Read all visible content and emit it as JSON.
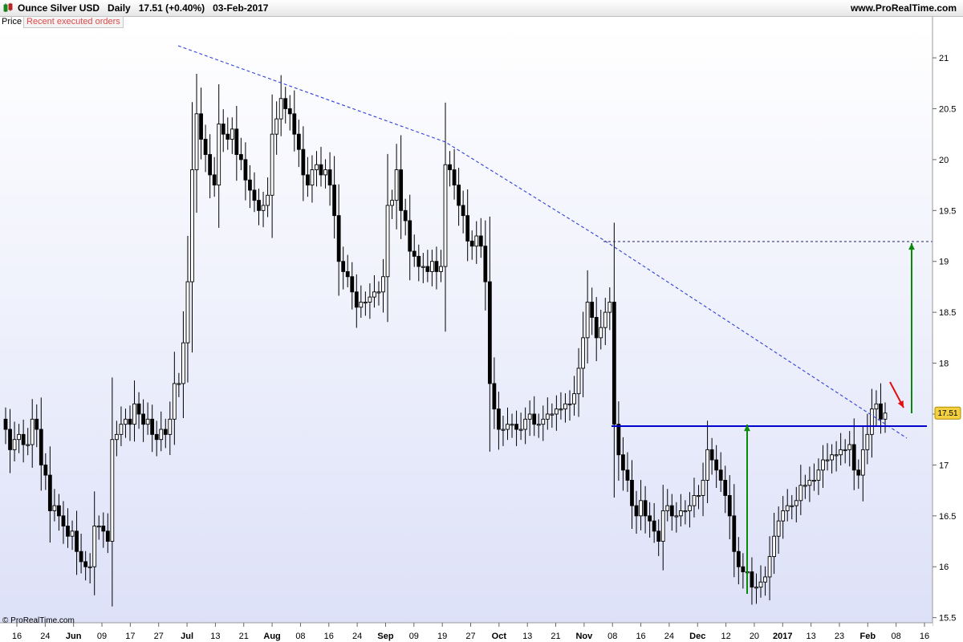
{
  "header": {
    "title": "Ounce Silver USD   Daily   17.51 (+0.40%)   03-Feb-2017",
    "site": "www.ProRealTime.com"
  },
  "panel": {
    "price_label": "Price",
    "orders_label": "Recent executed orders"
  },
  "footer": {
    "copyright": "© ProRealTime.com"
  },
  "colors": {
    "background_top": "#ffffff",
    "background_bottom": "#dde1f8",
    "trendline": "#3040d8",
    "support": "#0000cc",
    "arrow_up": "#0a8a0a",
    "arrow_down": "#e01010",
    "price_tag": "#f2d040",
    "candle_up": "#ffffff",
    "candle_down": "#000000"
  },
  "chart_data": {
    "type": "candlestick",
    "instrument": "Ounce Silver USD",
    "timeframe": "Daily",
    "last_price": 17.51,
    "change_pct": "+0.40%",
    "ylim": [
      15.45,
      21.3
    ],
    "yticks": [
      "15.5",
      "16",
      "16.5",
      "17",
      "17.5",
      "18",
      "18.5",
      "19",
      "19.5",
      "20",
      "20.5",
      "21"
    ],
    "xticks": [
      "16",
      "24",
      "Jun",
      "09",
      "17",
      "27",
      "Jul",
      "13",
      "21",
      "Aug",
      "08",
      "16",
      "24",
      "Sep",
      "09",
      "19",
      "27",
      "Oct",
      "13",
      "21",
      "Nov",
      "08",
      "16",
      "24",
      "Dec",
      "12",
      "20",
      "2017",
      "13",
      "23",
      "Feb",
      "08",
      "16"
    ],
    "closes": [
      17.35,
      17.15,
      17.25,
      17.3,
      17.2,
      17.2,
      17.45,
      17.35,
      17.0,
      16.9,
      16.55,
      16.6,
      16.5,
      16.4,
      16.3,
      16.35,
      16.15,
      16.05,
      16.0,
      16.0,
      16.4,
      16.4,
      16.35,
      16.25,
      17.25,
      17.3,
      17.4,
      17.45,
      17.4,
      17.6,
      17.5,
      17.4,
      17.45,
      17.3,
      17.25,
      17.35,
      17.3,
      17.45,
      17.8,
      17.8,
      18.2,
      18.8,
      19.9,
      20.45,
      20.2,
      20.05,
      19.85,
      19.75,
      20.35,
      20.25,
      20.2,
      20.3,
      20.05,
      20.0,
      19.8,
      19.7,
      19.6,
      19.5,
      19.55,
      19.65,
      20.25,
      20.4,
      20.6,
      20.5,
      20.45,
      20.25,
      20.1,
      19.85,
      19.75,
      19.9,
      19.95,
      19.85,
      19.9,
      19.75,
      19.45,
      19.0,
      18.9,
      18.85,
      18.7,
      18.55,
      18.6,
      18.6,
      18.65,
      18.7,
      18.7,
      18.85,
      19.55,
      19.6,
      19.9,
      19.5,
      19.4,
      19.1,
      19.05,
      18.95,
      18.95,
      18.9,
      19.0,
      18.9,
      18.95,
      19.95,
      19.9,
      19.75,
      19.55,
      19.45,
      19.2,
      19.15,
      19.25,
      19.15,
      18.8,
      17.8,
      17.55,
      17.35,
      17.35,
      17.4,
      17.4,
      17.35,
      17.35,
      17.45,
      17.5,
      17.4,
      17.4,
      17.45,
      17.5,
      17.5,
      17.55,
      17.55,
      17.6,
      17.6,
      17.7,
      17.95,
      18.25,
      18.6,
      18.45,
      18.25,
      18.35,
      18.5,
      18.6,
      17.4,
      17.1,
      16.95,
      16.85,
      16.6,
      16.5,
      16.65,
      16.5,
      16.45,
      16.35,
      16.25,
      16.55,
      16.6,
      16.5,
      16.5,
      16.55,
      16.55,
      16.6,
      16.7,
      16.7,
      16.85,
      17.15,
      17.05,
      16.95,
      16.85,
      16.7,
      16.5,
      16.15,
      16.0,
      15.95,
      15.95,
      15.8,
      15.8,
      15.85,
      15.9,
      16.1,
      16.3,
      16.45,
      16.55,
      16.6,
      16.6,
      16.65,
      16.8,
      16.8,
      16.85,
      16.85,
      16.95,
      17.05,
      17.05,
      17.1,
      17.1,
      17.15,
      17.15,
      17.2,
      16.95,
      16.9,
      17.15,
      17.3,
      17.55,
      17.6,
      17.45,
      17.51
    ]
  }
}
